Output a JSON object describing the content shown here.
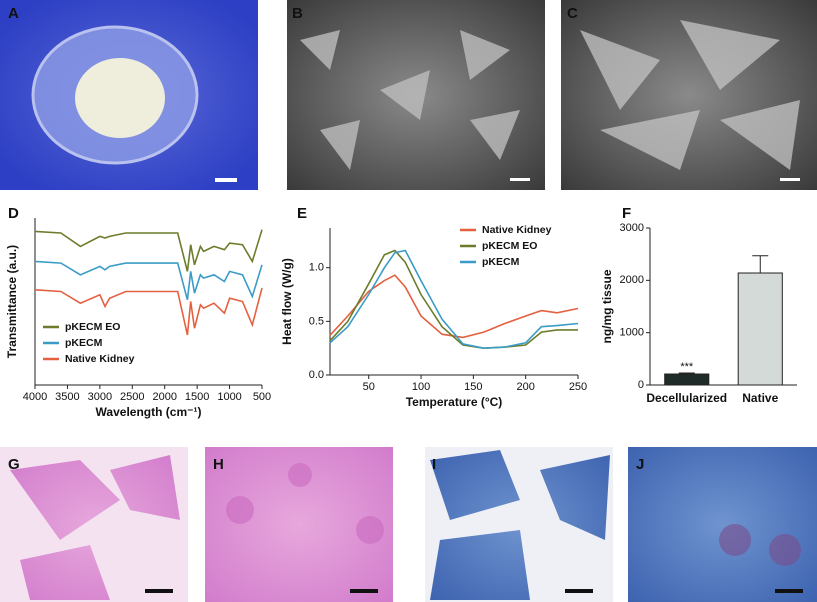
{
  "panel_labels": [
    "A",
    "B",
    "C",
    "D",
    "E",
    "F",
    "G",
    "H",
    "I",
    "J"
  ],
  "chart_data": [
    {
      "type": "line",
      "xlabel": "Wavelength (cm⁻¹)",
      "ylabel": "Transmittance (a.u.)",
      "x": [
        4000,
        3600,
        3300,
        3000,
        2920,
        2850,
        2600,
        2000,
        1800,
        1650,
        1600,
        1540,
        1450,
        1400,
        1240,
        1080,
        1000,
        800,
        650,
        500
      ],
      "xlim": [
        4000,
        500
      ],
      "xticks": [
        4000,
        3500,
        3000,
        2500,
        2000,
        1500,
        1000,
        500
      ],
      "ylim": [
        0,
        10
      ],
      "legend": "lower left",
      "series": [
        {
          "name": "pKECM EO",
          "color": "#6b7d2b",
          "values": [
            9.2,
            9.1,
            8.3,
            8.9,
            8.8,
            8.9,
            9.1,
            9.1,
            9.1,
            6.8,
            8.4,
            7.2,
            8.3,
            8.0,
            8.3,
            8.1,
            8.5,
            8.4,
            7.4,
            9.3
          ]
        },
        {
          "name": "pKECM",
          "color": "#3a9cc6",
          "values": [
            7.4,
            7.3,
            6.6,
            7.1,
            6.9,
            7.1,
            7.3,
            7.3,
            7.3,
            5.1,
            6.8,
            5.5,
            6.6,
            6.4,
            6.6,
            6.2,
            6.8,
            6.6,
            5.3,
            7.2
          ]
        },
        {
          "name": "Native Kidney",
          "color": "#e4603f",
          "values": [
            5.7,
            5.6,
            4.9,
            5.4,
            4.7,
            5.2,
            5.6,
            5.6,
            5.6,
            3.0,
            5.0,
            3.4,
            4.8,
            4.6,
            4.9,
            4.3,
            5.2,
            5.0,
            3.6,
            5.8
          ]
        }
      ]
    },
    {
      "type": "line",
      "xlabel": "Temperature (°C)",
      "ylabel": "Heat flow (W/g)",
      "x": [
        13,
        30,
        50,
        65,
        75,
        85,
        100,
        120,
        140,
        160,
        180,
        200,
        215,
        230,
        250
      ],
      "xlim": [
        13,
        250
      ],
      "xticks": [
        50,
        100,
        150,
        200,
        250
      ],
      "ylim": [
        0,
        1.37
      ],
      "yticks": [
        {
          "value": 0,
          "label": "0.0"
        },
        0.5,
        {
          "value": 1,
          "label": "1.0"
        }
      ],
      "legend": "upper right",
      "series": [
        {
          "name": "Native Kidney",
          "color": "#e4603f",
          "values": [
            0.37,
            0.55,
            0.78,
            0.88,
            0.93,
            0.82,
            0.55,
            0.38,
            0.35,
            0.4,
            0.48,
            0.55,
            0.6,
            0.58,
            0.62
          ]
        },
        {
          "name": "pKECM EO",
          "color": "#6b7d2b",
          "values": [
            0.32,
            0.5,
            0.85,
            1.12,
            1.16,
            1.05,
            0.75,
            0.45,
            0.28,
            0.25,
            0.26,
            0.28,
            0.4,
            0.42,
            0.42
          ]
        },
        {
          "name": "pKECM",
          "color": "#3a9cc6",
          "values": [
            0.3,
            0.45,
            0.75,
            1.0,
            1.14,
            1.16,
            0.88,
            0.52,
            0.29,
            0.25,
            0.26,
            0.3,
            0.45,
            0.46,
            0.48
          ]
        }
      ]
    },
    {
      "type": "bar",
      "ylabel": "ng/mg tissue",
      "categories": [
        "Decellularized",
        "Native"
      ],
      "values": [
        210,
        2140
      ],
      "errors": [
        20,
        330
      ],
      "colors": [
        "#1e2b28",
        "#d3dad7"
      ],
      "bar_annotations": [
        "***",
        null
      ],
      "ylim": [
        0,
        3000
      ],
      "yticks": [
        0,
        1000,
        2000,
        3000
      ]
    }
  ]
}
